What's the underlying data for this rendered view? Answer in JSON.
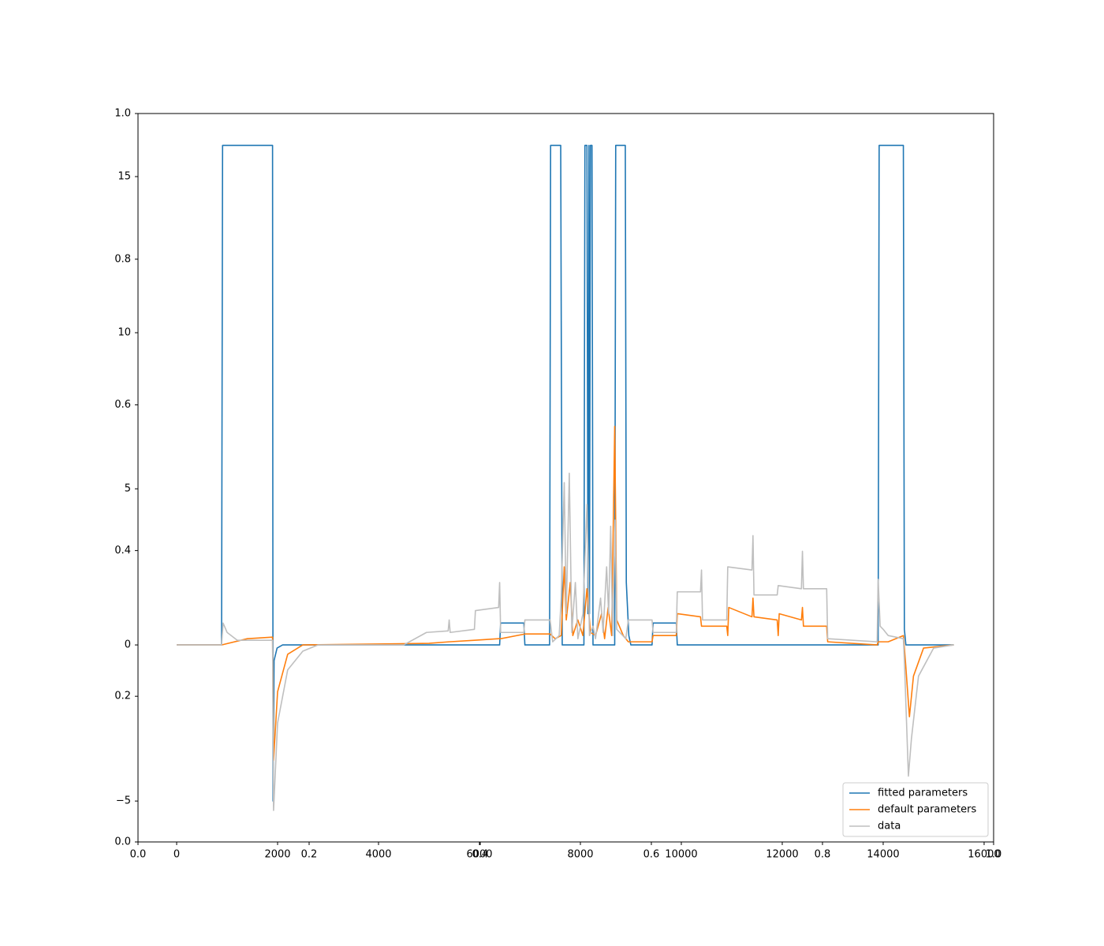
{
  "chart_data": [
    {
      "type": "axes",
      "xlim": [
        0,
        1
      ],
      "ylim": [
        0,
        1
      ],
      "xticks": [
        {
          "value": 0,
          "label": "0.0"
        },
        0.2,
        0.4,
        0.6,
        0.8,
        {
          "value": 1,
          "label": "1.0"
        }
      ],
      "yticks": [
        {
          "value": 0,
          "label": "0.0"
        },
        0.2,
        0.4,
        0.6,
        0.8,
        {
          "value": 1,
          "label": "1.0"
        }
      ]
    },
    {
      "type": "line",
      "xlim": [
        -766,
        16188
      ],
      "ylim": [
        -6.31,
        17.02
      ],
      "xticks": [
        0,
        2000,
        4000,
        6000,
        8000,
        10000,
        12000,
        14000,
        16000
      ],
      "yticks": [
        {
          "value": -5,
          "label": "−5"
        },
        0,
        5,
        10,
        15
      ],
      "legend": "lower right",
      "series": [
        {
          "name": "fitted parameters",
          "color": "#1f77b4",
          "x": [
            0,
            890,
            910,
            1900,
            1910,
            1930,
            1990,
            2100,
            6400,
            6420,
            6880,
            6900,
            7390,
            7410,
            7610,
            7640,
            8070,
            8090,
            8130,
            8150,
            8170,
            8180,
            8200,
            8230,
            8250,
            8680,
            8700,
            8890,
            8910,
            8960,
            9000,
            9420,
            9440,
            9900,
            9920,
            13900,
            13920,
            14400,
            14420,
            14450,
            15400
          ],
          "values": [
            0,
            0,
            16,
            16,
            -5,
            -0.5,
            -0.1,
            0,
            0,
            0.7,
            0.7,
            0,
            0,
            16,
            16,
            0,
            0,
            16,
            16,
            1,
            16,
            1,
            16,
            16,
            0,
            0,
            16,
            16,
            2,
            0.3,
            0,
            0,
            0.7,
            0.7,
            0,
            0,
            16,
            16,
            0.5,
            0,
            0
          ]
        },
        {
          "name": "default parameters",
          "color": "#ff7f0e",
          "x": [
            0,
            890,
            1400,
            1900,
            1920,
            2000,
            2200,
            2500,
            5000,
            5400,
            5900,
            6380,
            6420,
            6900,
            7400,
            7500,
            7620,
            7680,
            7720,
            7800,
            7850,
            7950,
            8050,
            8130,
            8200,
            8300,
            8420,
            8480,
            8550,
            8620,
            8680,
            8720,
            8850,
            8950,
            9420,
            9440,
            9900,
            9920,
            10380,
            10400,
            10900,
            10920,
            10940,
            11400,
            11420,
            11440,
            11900,
            11920,
            11940,
            12380,
            12400,
            12420,
            12880,
            12900,
            13880,
            13900,
            14100,
            14400,
            14440,
            14520,
            14600,
            14800,
            15400
          ],
          "values": [
            0,
            0,
            0.2,
            0.25,
            -3.7,
            -1.5,
            -0.3,
            0,
            0.05,
            0.1,
            0.15,
            0.2,
            0.2,
            0.35,
            0.35,
            0.2,
            0.3,
            2.5,
            0.8,
            2,
            0.3,
            0.8,
            0.3,
            1.8,
            0.4,
            0.3,
            1,
            0.2,
            1.2,
            0.3,
            7,
            0.8,
            0.3,
            0.1,
            0.1,
            0.3,
            0.3,
            1,
            0.9,
            0.6,
            0.6,
            0.3,
            1.2,
            0.9,
            1.5,
            0.9,
            0.8,
            0.3,
            1,
            0.8,
            1.2,
            0.6,
            0.6,
            0.1,
            0,
            0.1,
            0.1,
            0.3,
            -0.5,
            -2.3,
            -1,
            -0.1,
            0
          ]
        },
        {
          "name": "data",
          "color": "#bfbfbf",
          "x": [
            0,
            890,
            920,
            1000,
            1200,
            1900,
            1920,
            2000,
            2200,
            2500,
            2800,
            4500,
            4950,
            5380,
            5400,
            5420,
            5900,
            5920,
            6380,
            6400,
            6420,
            6880,
            6900,
            7400,
            7450,
            7580,
            7620,
            7680,
            7720,
            7780,
            7830,
            7900,
            7950,
            8050,
            8130,
            8180,
            8250,
            8300,
            8400,
            8450,
            8520,
            8560,
            8600,
            8640,
            8690,
            8720,
            8900,
            8950,
            9420,
            9440,
            9900,
            9920,
            10380,
            10400,
            10420,
            10900,
            10920,
            11400,
            11420,
            11440,
            11900,
            11920,
            12380,
            12400,
            12420,
            12880,
            12900,
            13880,
            13900,
            13940,
            14000,
            14100,
            14400,
            14420,
            14500,
            14560,
            14700,
            15000,
            15400
          ],
          "values": [
            0,
            0,
            0.7,
            0.4,
            0.15,
            0.15,
            -5.3,
            -2.5,
            -0.8,
            -0.2,
            0,
            0,
            0.4,
            0.45,
            0.8,
            0.4,
            0.5,
            1.1,
            1.2,
            2,
            0.4,
            0.4,
            0.8,
            0.8,
            0.1,
            0.3,
            1.5,
            5.2,
            1,
            5.5,
            0.4,
            2,
            0.2,
            1,
            4.5,
            0.3,
            0.6,
            0.2,
            1.5,
            0.4,
            2.5,
            1,
            3.8,
            0.3,
            4,
            0.5,
            0.2,
            0.8,
            0.8,
            0.4,
            0.4,
            1.7,
            1.7,
            2.4,
            0.8,
            0.8,
            2.5,
            2.4,
            3.5,
            1.6,
            1.6,
            1.9,
            1.8,
            3,
            1.8,
            1.8,
            0.2,
            0.1,
            2.1,
            0.6,
            0.5,
            0.3,
            0.2,
            -0.5,
            -4.2,
            -3,
            -1,
            -0.1,
            0
          ]
        }
      ]
    }
  ]
}
